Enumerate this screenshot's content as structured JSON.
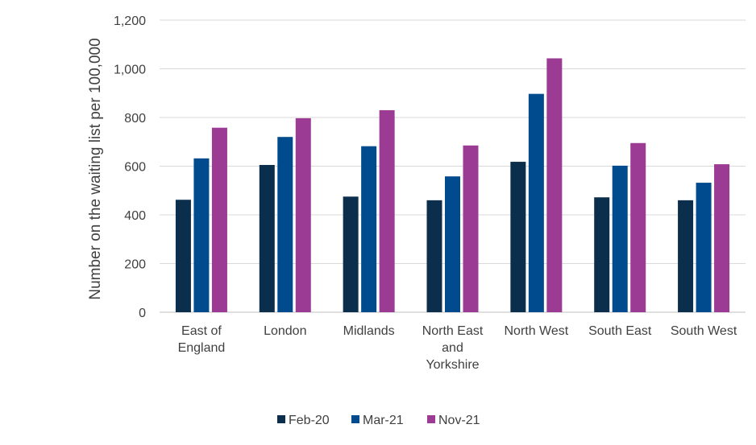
{
  "chart_data": {
    "type": "bar",
    "categories": [
      [
        "East of",
        "England"
      ],
      [
        "London"
      ],
      [
        "Midlands"
      ],
      [
        "North East",
        "and",
        "Yorkshire"
      ],
      [
        "North West"
      ],
      [
        "South East"
      ],
      [
        "South West"
      ]
    ],
    "series": [
      {
        "name": "Feb-20",
        "color": "#0b2e4d",
        "values": [
          462,
          605,
          475,
          460,
          618,
          472,
          460
        ]
      },
      {
        "name": "Mar-21",
        "color": "#004b8d",
        "values": [
          632,
          720,
          682,
          558,
          897,
          602,
          532
        ]
      },
      {
        "name": "Nov-21",
        "color": "#9b3b93",
        "values": [
          758,
          797,
          830,
          685,
          1043,
          695,
          608
        ]
      }
    ],
    "ylabel": "Number  on the waiting list per 100,000",
    "xlabel": "",
    "ylim": [
      0,
      1200
    ],
    "yticks": [
      0,
      200,
      400,
      600,
      800,
      1000,
      1200
    ],
    "ytick_labels": [
      "0",
      "200",
      "400",
      "600",
      "800",
      "1,000",
      "1,200"
    ],
    "grid": true,
    "legend_position": "bottom"
  }
}
